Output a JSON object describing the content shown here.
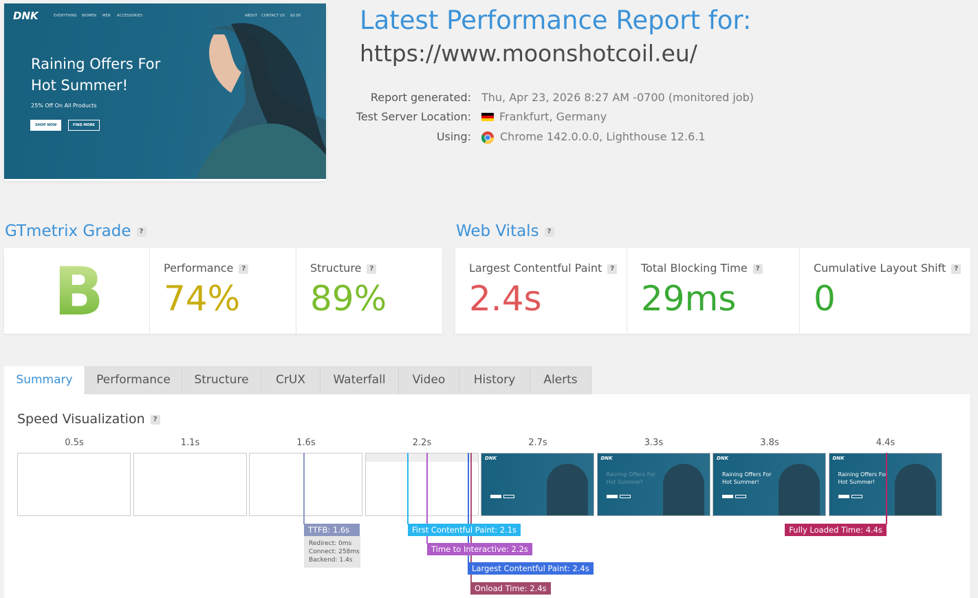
{
  "preview": {
    "logo": "DNK",
    "nav": [
      "EVERYTHING",
      "WOMEN",
      "MEN",
      "ACCESSORIES"
    ],
    "nav_right": [
      "ABOUT",
      "CONTACT US",
      "$0.00"
    ],
    "hero_lines": [
      "Raining Offers For",
      "Hot Summer!"
    ],
    "hero_subtitle": "25% Off On All Products",
    "buttons": [
      "SHOP NOW",
      "FIND MORE"
    ]
  },
  "header": {
    "title": "Latest Performance Report for:",
    "url": "https://www.moonshotcoil.eu/",
    "details": [
      {
        "label": "Report generated:",
        "value": "Thu, Apr 23, 2026 8:27 AM -0700 (monitored job)"
      },
      {
        "label": "Test Server Location:",
        "value": "Frankfurt, Germany"
      },
      {
        "label": "Using:",
        "value": "Chrome 142.0.0.0, Lighthouse 12.6.1"
      }
    ]
  },
  "help": "?",
  "grade": {
    "heading": "GTmetrix Grade",
    "grade": "B",
    "metrics": [
      {
        "label": "Performance",
        "value": "74%"
      },
      {
        "label": "Structure",
        "value": "89%"
      }
    ]
  },
  "web_vitals": {
    "heading": "Web Vitals",
    "metrics": [
      {
        "label": "Largest Contentful Paint",
        "value": "2.4s"
      },
      {
        "label": "Total Blocking Time",
        "value": "29ms"
      },
      {
        "label": "Cumulative Layout Shift",
        "value": "0"
      }
    ]
  },
  "tabs": [
    "Summary",
    "Performance",
    "Structure",
    "CrUX",
    "Waterfall",
    "Video",
    "History",
    "Alerts"
  ],
  "speed_visualization": {
    "heading": "Speed Visualization",
    "frame_times": [
      "0.5s",
      "1.1s",
      "1.6s",
      "2.2s",
      "2.7s",
      "3.3s",
      "3.8s",
      "4.4s"
    ],
    "markers": [
      {
        "label": "TTFB: 1.6s",
        "details": [
          "Redirect: 0ms",
          "Connect: 258ms",
          "Backend: 1.4s"
        ]
      },
      {
        "label": "First Contentful Paint: 2.1s"
      },
      {
        "label": "Time to Interactive: 2.2s"
      },
      {
        "label": "Largest Contentful Paint: 2.4s"
      },
      {
        "label": "Onload Time: 2.4s"
      },
      {
        "label": "Fully Loaded Time: 4.4s"
      }
    ]
  }
}
